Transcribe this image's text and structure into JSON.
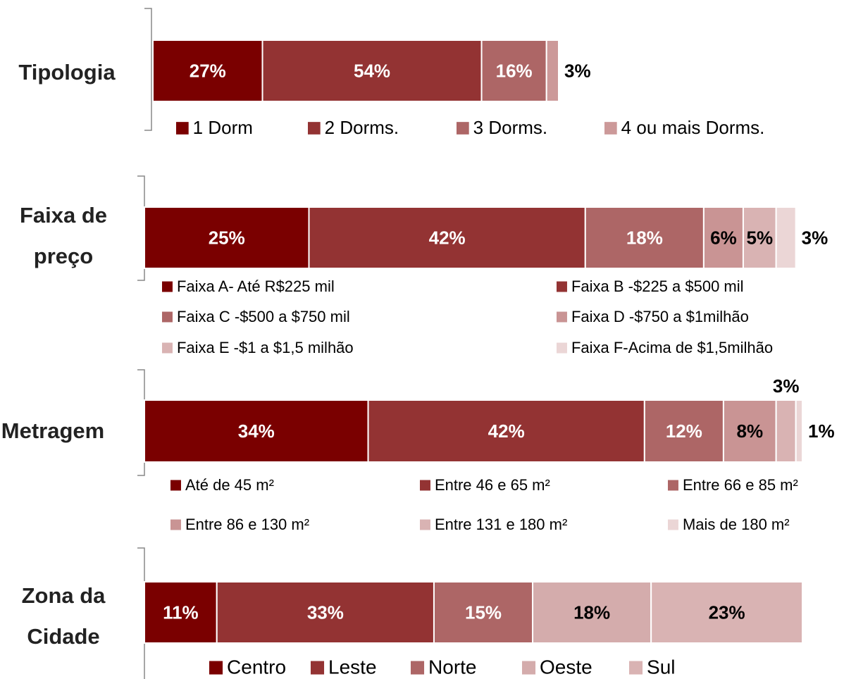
{
  "chart_data": [
    {
      "type": "bar",
      "orientation": "horizontal",
      "stacked": true,
      "title": "Tipologia",
      "categories": [
        null
      ],
      "series": [
        {
          "name": "1 Dorm",
          "color": "#7a0000",
          "values": [
            27
          ],
          "value_labels": [
            "27%"
          ]
        },
        {
          "name": "2 Dorms.",
          "color": "#933333",
          "values": [
            54
          ],
          "value_labels": [
            "54%"
          ]
        },
        {
          "name": "3 Dorms.",
          "color": "#ad6666",
          "values": [
            16
          ],
          "value_labels": [
            "16%"
          ]
        },
        {
          "name": "4 ou mais Dorms.",
          "color": "#cc9999",
          "values": [
            3
          ],
          "value_labels": [
            "3%"
          ]
        }
      ]
    },
    {
      "type": "bar",
      "orientation": "horizontal",
      "stacked": true,
      "title": "Faixa de preço",
      "categories": [
        null
      ],
      "series": [
        {
          "name": "Faixa A- Até R$225 mil",
          "color": "#7a0000",
          "values": [
            25
          ],
          "value_labels": [
            "25%"
          ]
        },
        {
          "name": "Faixa B -$225 a $500 mil",
          "color": "#933333",
          "values": [
            42
          ],
          "value_labels": [
            "42%"
          ]
        },
        {
          "name": "Faixa C -$500 a $750 mil",
          "color": "#ad6666",
          "values": [
            18
          ],
          "value_labels": [
            "18%"
          ]
        },
        {
          "name": "Faixa D -$750 a $1milhão",
          "color": "#c99494",
          "values": [
            6
          ],
          "value_labels": [
            "6%"
          ]
        },
        {
          "name": "Faixa E -$1 a $1,5 milhão",
          "color": "#d9b3b3",
          "values": [
            5
          ],
          "value_labels": [
            "5%"
          ]
        },
        {
          "name": "Faixa F-Acima de $1,5milhão",
          "color": "#ebd6d6",
          "values": [
            3
          ],
          "value_labels": [
            "3%"
          ]
        }
      ]
    },
    {
      "type": "bar",
      "orientation": "horizontal",
      "stacked": true,
      "title": "Metragem",
      "categories": [
        null
      ],
      "series": [
        {
          "name": "Até de 45 m²",
          "color": "#7a0000",
          "values": [
            34
          ],
          "value_labels": [
            "34%"
          ]
        },
        {
          "name": "Entre 46 e 65 m²",
          "color": "#933333",
          "values": [
            42
          ],
          "value_labels": [
            "42%"
          ]
        },
        {
          "name": "Entre 66 e 85 m²",
          "color": "#ad6666",
          "values": [
            12
          ],
          "value_labels": [
            "12%"
          ]
        },
        {
          "name": "Entre 86 e 130 m²",
          "color": "#c99494",
          "values": [
            8
          ],
          "value_labels": [
            "8%"
          ]
        },
        {
          "name": "Entre 131 e 180 m²",
          "color": "#d9b3b3",
          "values": [
            3
          ],
          "value_labels": [
            "3%"
          ]
        },
        {
          "name": "Mais de 180 m²",
          "color": "#ebd6d6",
          "values": [
            1
          ],
          "value_labels": [
            "1%"
          ]
        }
      ]
    },
    {
      "type": "bar",
      "orientation": "horizontal",
      "stacked": true,
      "title": "Zona da Cidade",
      "categories": [
        null
      ],
      "series": [
        {
          "name": "Centro",
          "color": "#7a0000",
          "values": [
            11
          ],
          "value_labels": [
            "11%"
          ]
        },
        {
          "name": "Leste",
          "color": "#933333",
          "values": [
            33
          ],
          "value_labels": [
            "33%"
          ]
        },
        {
          "name": "Norte",
          "color": "#ad6666",
          "values": [
            15
          ],
          "value_labels": [
            "15%"
          ]
        },
        {
          "name": "Oeste",
          "color": "#d4acac",
          "values": [
            18
          ],
          "value_labels": [
            "18%"
          ]
        },
        {
          "name": "Sul",
          "color": "#d9b3b3",
          "values": [
            23
          ],
          "value_labels": [
            "23%"
          ]
        }
      ]
    }
  ]
}
